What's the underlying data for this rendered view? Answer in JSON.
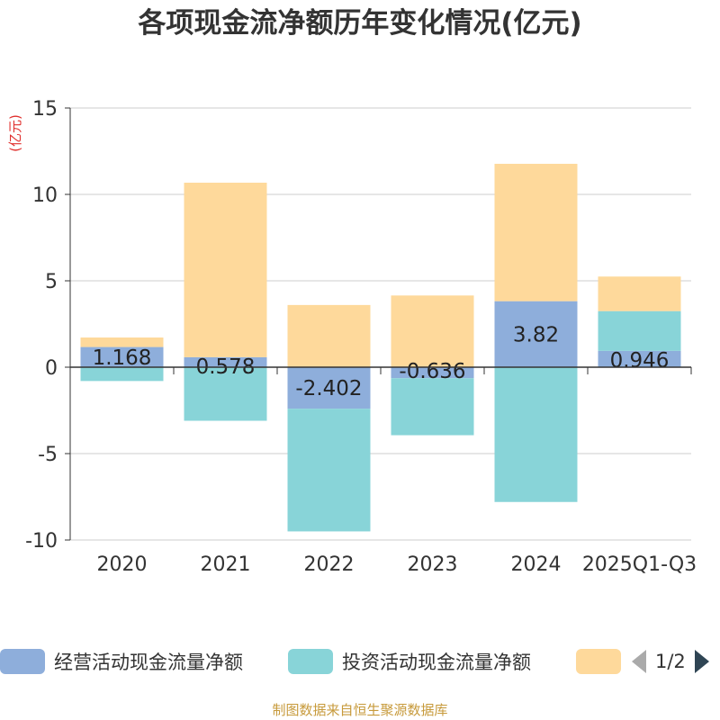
{
  "chart_data": {
    "type": "bar",
    "stacked": true,
    "title": "各项现金流净额历年变化情况(亿元)",
    "ylabel": "(亿元)",
    "xlabel": "",
    "ylim": [
      -10,
      15
    ],
    "yticks": [
      15,
      10,
      5,
      0,
      -5,
      -10
    ],
    "grid": true,
    "categories": [
      "2020",
      "2021",
      "2022",
      "2023",
      "2024",
      "2025Q1-Q3"
    ],
    "series": [
      {
        "name": "经营活动现金流量净额",
        "color": "#8eaedb",
        "values": [
          1.168,
          0.578,
          -2.402,
          -0.636,
          3.82,
          0.946
        ],
        "labels": [
          "1.168",
          "0.578",
          "-2.402",
          "-0.636",
          "3.82",
          "0.946"
        ]
      },
      {
        "name": "投资活动现金流量净额",
        "color": "#88d4d8",
        "values": [
          -0.8,
          -3.1,
          -7.1,
          -3.3,
          -7.8,
          2.3
        ]
      },
      {
        "name": "",
        "color": "#fed99b",
        "values": [
          0.55,
          10.1,
          3.6,
          4.15,
          7.95,
          2.0
        ]
      }
    ]
  },
  "legend": {
    "pager": "1/2"
  },
  "footer": "制图数据来自恒生聚源数据库"
}
